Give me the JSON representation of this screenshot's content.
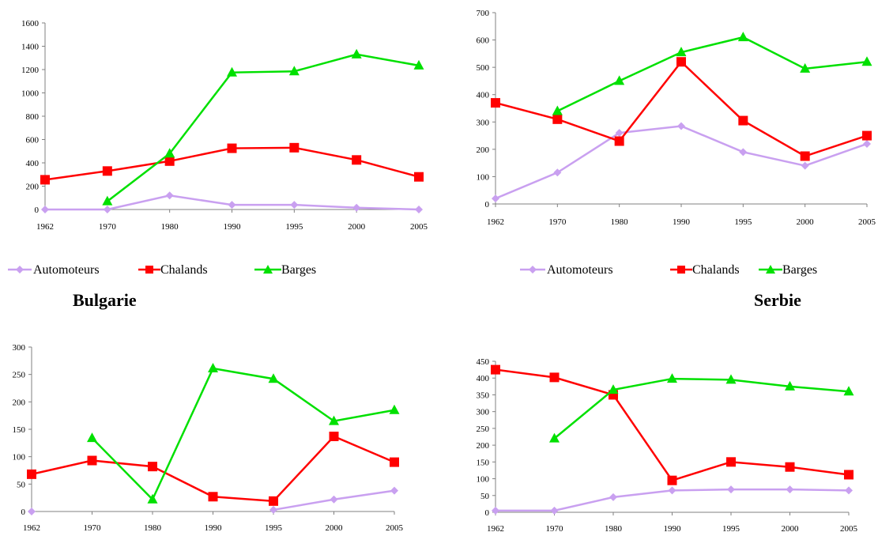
{
  "colors": {
    "automoteurs": "#c9a0f0",
    "chalands": "#ff0000",
    "barges": "#00e000"
  },
  "chart_data": [
    {
      "type": "line",
      "title": "Bulgarie",
      "categories": [
        "1962",
        "1970",
        "1980",
        "1990",
        "1995",
        "2000",
        "2005"
      ],
      "yticks": [
        0,
        200,
        400,
        600,
        800,
        1000,
        1200,
        1400,
        1600
      ],
      "ylim": [
        0,
        1600
      ],
      "legend": [
        "Automoteurs",
        "Chalands",
        "Barges"
      ],
      "series": [
        {
          "name": "Automoteurs",
          "values": [
            0,
            0,
            120,
            40,
            40,
            15,
            0
          ]
        },
        {
          "name": "Chalands",
          "values": [
            255,
            330,
            415,
            525,
            530,
            425,
            280
          ]
        },
        {
          "name": "Barges",
          "values": [
            null,
            70,
            480,
            1175,
            1185,
            1330,
            1235
          ]
        }
      ]
    },
    {
      "type": "line",
      "title": "Serbie",
      "categories": [
        "1962",
        "1970",
        "1980",
        "1990",
        "1995",
        "2000",
        "2005"
      ],
      "yticks": [
        0,
        100,
        200,
        300,
        400,
        500,
        600,
        700
      ],
      "ylim": [
        0,
        700
      ],
      "legend": [
        "Automoteurs",
        "Chalands",
        "Barges"
      ],
      "series": [
        {
          "name": "Automoteurs",
          "values": [
            20,
            115,
            260,
            285,
            190,
            140,
            220
          ]
        },
        {
          "name": "Chalands",
          "values": [
            370,
            310,
            230,
            520,
            305,
            175,
            250
          ]
        },
        {
          "name": "Barges",
          "values": [
            null,
            340,
            450,
            555,
            610,
            495,
            520
          ]
        }
      ]
    },
    {
      "type": "line",
      "title": "",
      "categories": [
        "1962",
        "1970",
        "1980",
        "1990",
        "1995",
        "2000",
        "2005"
      ],
      "yticks": [
        0,
        50,
        100,
        150,
        200,
        250,
        300
      ],
      "ylim": [
        0,
        300
      ],
      "series": [
        {
          "name": "Automoteurs",
          "values": [
            0,
            null,
            null,
            null,
            3,
            22,
            38
          ]
        },
        {
          "name": "Chalands",
          "values": [
            68,
            93,
            82,
            27,
            19,
            137,
            90
          ]
        },
        {
          "name": "Barges",
          "values": [
            null,
            134,
            22,
            261,
            242,
            165,
            185
          ]
        }
      ]
    },
    {
      "type": "line",
      "title": "",
      "categories": [
        "1962",
        "1970",
        "1980",
        "1990",
        "1995",
        "2000",
        "2005"
      ],
      "yticks": [
        0,
        50,
        100,
        150,
        200,
        250,
        300,
        350,
        400,
        450
      ],
      "ylim": [
        0,
        450
      ],
      "series": [
        {
          "name": "Automoteurs",
          "values": [
            5,
            5,
            45,
            65,
            68,
            68,
            65
          ]
        },
        {
          "name": "Chalands",
          "values": [
            425,
            402,
            350,
            95,
            150,
            135,
            112
          ]
        },
        {
          "name": "Barges",
          "values": [
            null,
            220,
            365,
            398,
            395,
            375,
            360
          ]
        }
      ]
    }
  ]
}
